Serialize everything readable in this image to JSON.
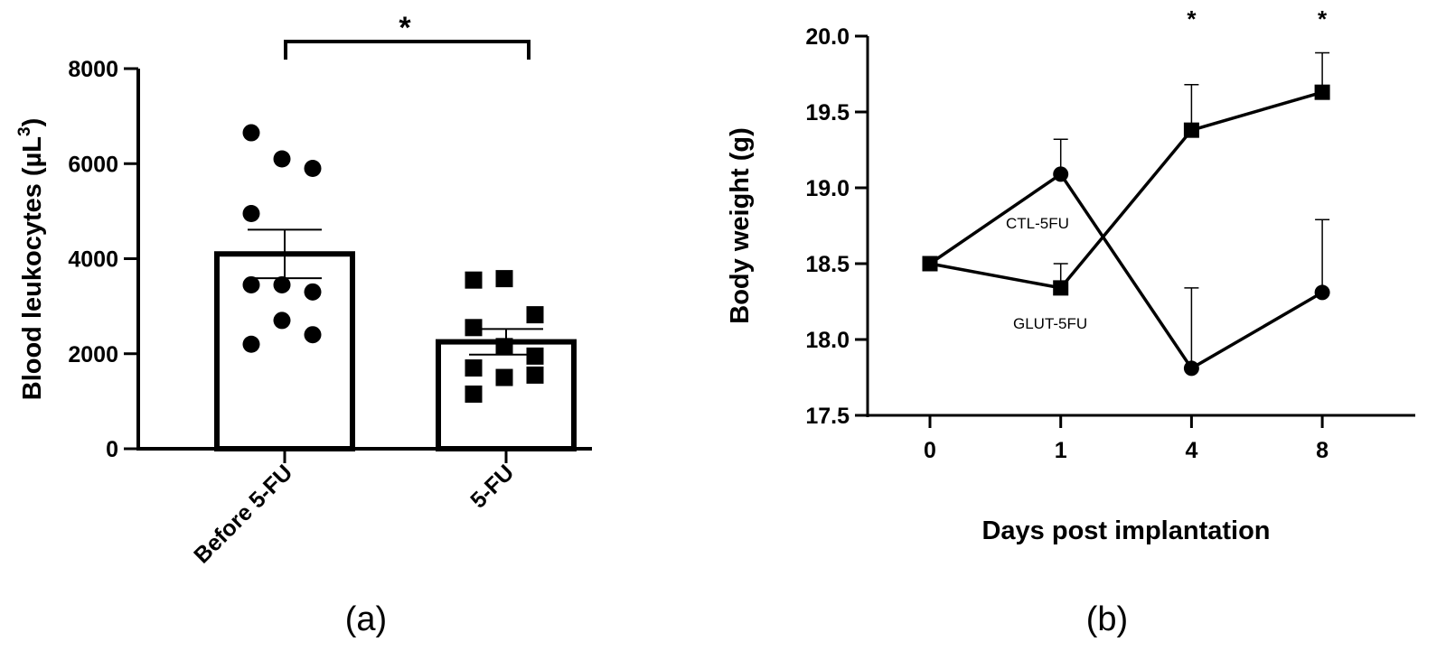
{
  "chart_data": [
    {
      "type": "bar",
      "panel_label": "(a)",
      "ylabel": "Blood leukocytes (µL",
      "ylabel_superscript": "3",
      "ylabel_close": ")",
      "ylim": [
        0,
        8000
      ],
      "yticks": [
        "0",
        "2000",
        "4000",
        "6000",
        "8000"
      ],
      "ytick_values": [
        0,
        2000,
        4000,
        6000,
        8000
      ],
      "categories": [
        "Before 5-FU",
        "5-FU"
      ],
      "values": [
        4100,
        2250
      ],
      "error_sem": [
        510,
        270
      ],
      "points": [
        {
          "marker": "circle",
          "values": [
            6650,
            6100,
            5900,
            4950,
            3450,
            3300,
            3450,
            2700,
            2400,
            2200
          ]
        },
        {
          "marker": "square",
          "values": [
            3550,
            3580,
            2820,
            2550,
            2150,
            1950,
            1700,
            1500,
            1550,
            1150
          ]
        }
      ],
      "significance": "*",
      "grid": false
    },
    {
      "type": "line",
      "panel_label": "(b)",
      "xlabel": "Days post implantation",
      "ylabel": "Body weight (g)",
      "ylim": [
        17.5,
        20.0
      ],
      "yticks": [
        "17.5",
        "18.0",
        "18.5",
        "19.0",
        "19.5",
        "20.0"
      ],
      "ytick_values": [
        17.5,
        18.0,
        18.5,
        19.0,
        19.5,
        20.0
      ],
      "categories": [
        "0",
        "1",
        "4",
        "8"
      ],
      "series": [
        {
          "name": "CTL-5FU",
          "marker": "circle",
          "values": [
            18.5,
            19.09,
            17.81,
            18.31
          ],
          "error_upper": [
            18.5,
            19.32,
            18.34,
            18.79
          ]
        },
        {
          "name": "GLUT-5FU",
          "marker": "square",
          "values": [
            18.5,
            18.34,
            19.38,
            19.63
          ],
          "error_upper": [
            18.5,
            18.5,
            19.68,
            19.89
          ]
        }
      ],
      "significance": [
        "",
        "",
        "*",
        "*"
      ],
      "grid": false
    }
  ],
  "colors": {
    "ink": "#000000",
    "background": "#ffffff"
  }
}
